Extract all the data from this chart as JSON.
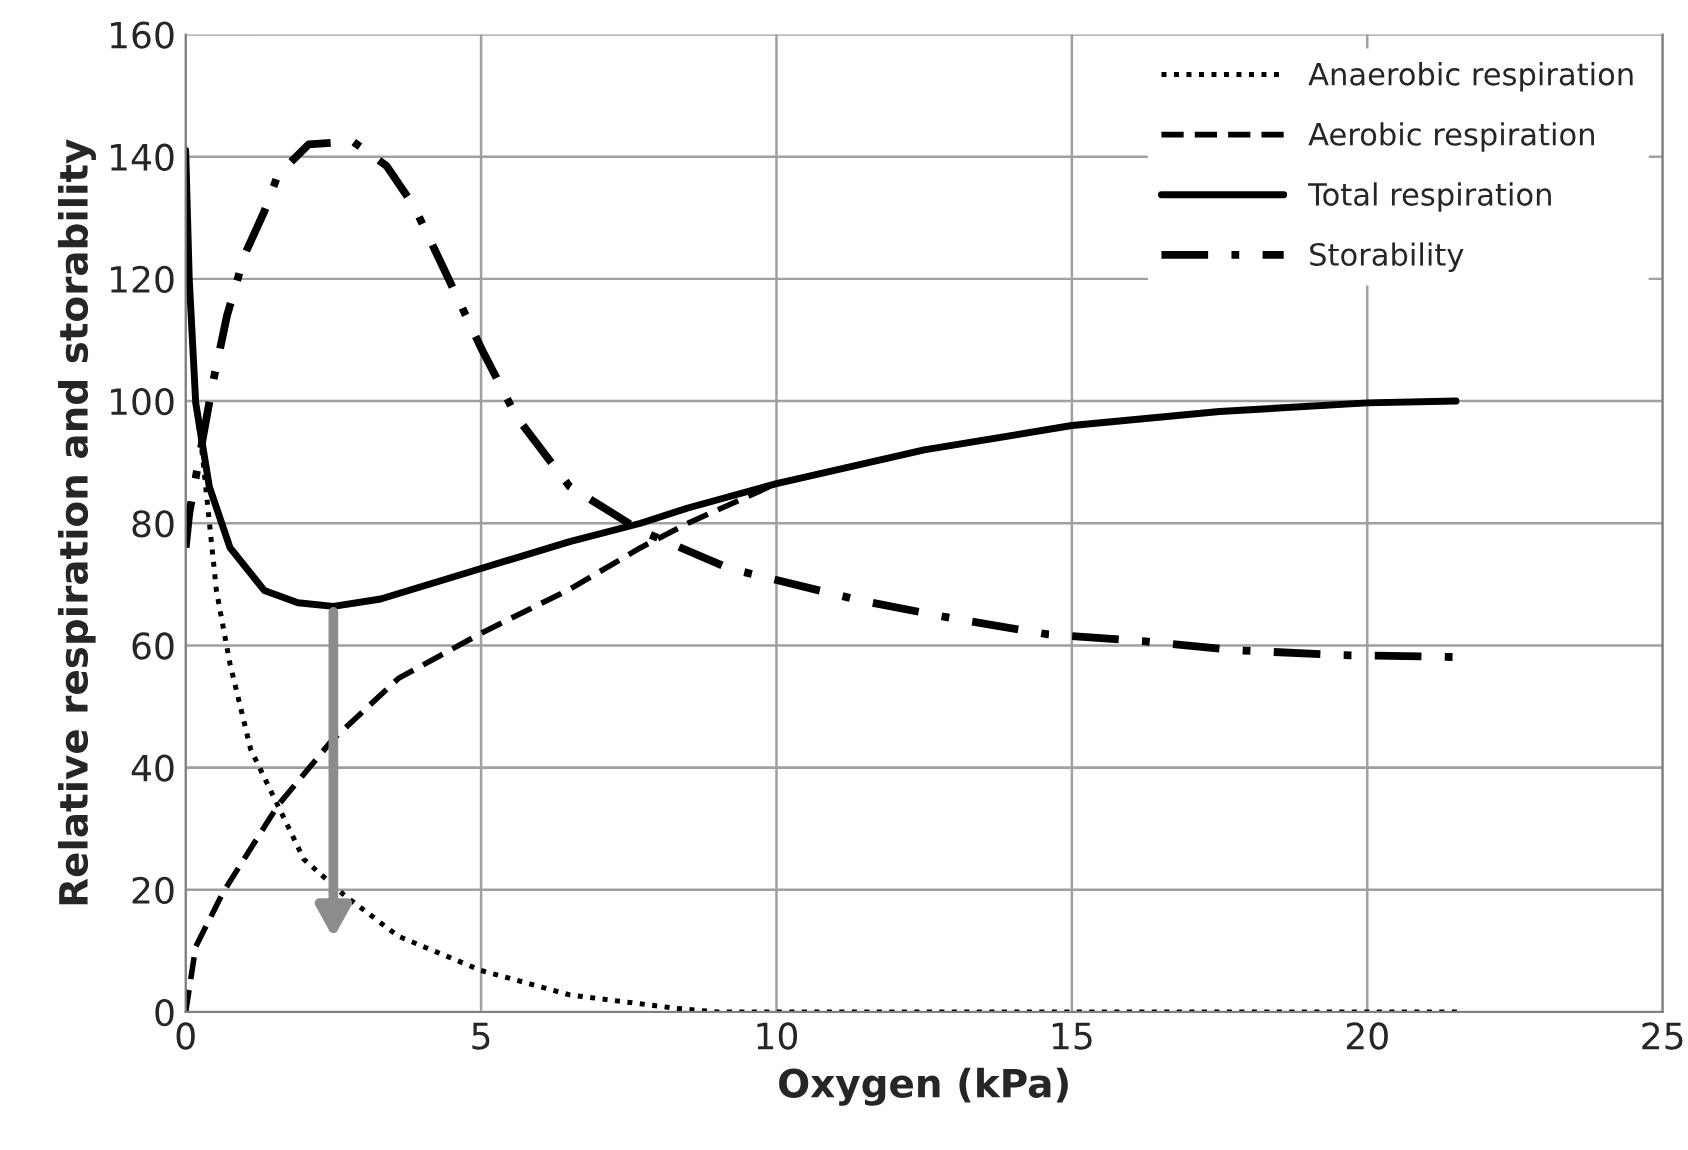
{
  "chart_data": {
    "type": "line",
    "xlabel": "Oxygen (kPa)",
    "ylabel": "Relative respiration and storability",
    "xlim": [
      0,
      25
    ],
    "ylim": [
      0,
      160
    ],
    "xticks": [
      0,
      5,
      10,
      15,
      20,
      25
    ],
    "yticks": [
      0,
      20,
      40,
      60,
      80,
      100,
      120,
      140,
      160
    ],
    "grid": true,
    "legend": "top right",
    "marker": "none",
    "series": [
      {
        "name": "Anaerobic respiration",
        "color": "#000000",
        "line_style": "dotted",
        "x": [
          0,
          0.06,
          0.17,
          0.29,
          0.52,
          0.75,
          1.1,
          1.56,
          2.0,
          2.7,
          3.6,
          5.0,
          6.5,
          8.3,
          9.0,
          12,
          15,
          18,
          21.6
        ],
        "values": [
          141,
          120,
          100,
          90.6,
          69,
          57,
          43,
          33.8,
          25,
          19,
          12.4,
          6.8,
          2.8,
          0.6,
          0,
          0,
          0,
          0,
          0
        ]
      },
      {
        "name": "Aerobic respiration",
        "color": "#000000",
        "line_style": "dashed",
        "x": [
          0,
          0.17,
          0.64,
          1.56,
          2.48,
          3.6,
          5.0,
          6.5,
          7.7,
          8.5,
          10,
          12.5,
          15,
          17.5,
          20,
          21.5
        ],
        "values": [
          0,
          10.7,
          19.7,
          33.8,
          44.5,
          54.6,
          62,
          69.2,
          76,
          80,
          86.5,
          92,
          96,
          98.3,
          99.7,
          100
        ]
      },
      {
        "name": "Total respiration",
        "color": "#000000",
        "line_style": "solid",
        "x": [
          0,
          0.06,
          0.17,
          0.4,
          0.75,
          1.33,
          1.9,
          2.5,
          3.3,
          5.0,
          6.5,
          7.7,
          8.5,
          10,
          12.5,
          15,
          17.5,
          20,
          21.5
        ],
        "values": [
          141,
          120,
          99.7,
          86,
          76,
          69,
          67,
          66.4,
          67.6,
          72.6,
          77,
          80,
          82.5,
          86.5,
          92,
          96,
          98.3,
          99.7,
          100
        ]
      },
      {
        "name": "Storability",
        "color": "#000000",
        "line_style": "dashdot",
        "x": [
          0,
          0.06,
          0.46,
          0.7,
          1.0,
          1.33,
          1.56,
          2.08,
          2.83,
          3.4,
          3.87,
          4.45,
          5.0,
          5.6,
          6.5,
          7.7,
          9.2,
          11.4,
          13,
          14.6,
          16.2,
          17.8,
          19.6,
          21.5
        ],
        "values": [
          76,
          81.6,
          103,
          114,
          124,
          131,
          137,
          142,
          142.5,
          138.5,
          131.8,
          120,
          108.7,
          97.4,
          86,
          78.8,
          72.6,
          67.4,
          64.4,
          61.8,
          60.7,
          59.2,
          58.4,
          58.1
        ]
      }
    ]
  }
}
